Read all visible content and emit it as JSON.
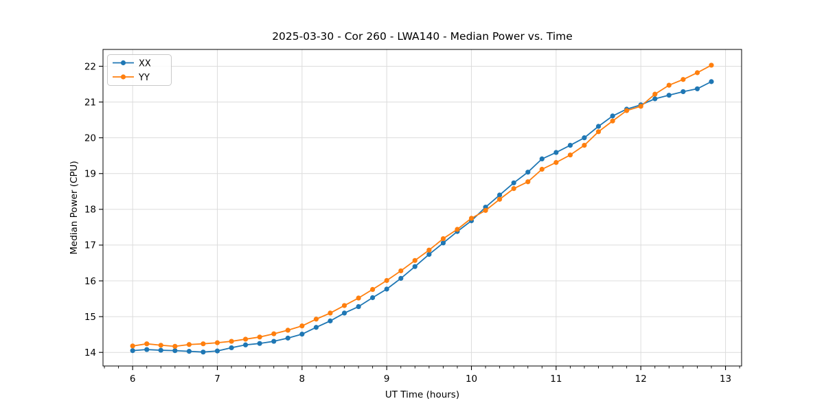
{
  "title": "2025-03-30 - Cor 260 - LWA140 - Median Power vs. Time",
  "colors": {
    "series_xx": "#1f77b4",
    "series_yy": "#ff7f0e",
    "grid": "#dcdcdc",
    "spine": "#000000",
    "legend_border": "#c8c8c8",
    "background": "#ffffff"
  },
  "legend": {
    "position": "upper-left",
    "entries": [
      {
        "label": "XX",
        "color": "#1f77b4"
      },
      {
        "label": "YY",
        "color": "#ff7f0e"
      }
    ]
  },
  "chart_data": {
    "type": "line",
    "title": "2025-03-30 - Cor 260 - LWA140 - Median Power vs. Time",
    "xlabel": "UT Time (hours)",
    "ylabel": "Median Power (CPU)",
    "xlim": [
      5.65,
      13.19
    ],
    "ylim": [
      13.62,
      22.47
    ],
    "xticks": [
      6,
      7,
      8,
      9,
      10,
      11,
      12,
      13
    ],
    "yticks": [
      14,
      15,
      16,
      17,
      18,
      19,
      20,
      21,
      22
    ],
    "x_minor_step": 0.16667,
    "grid": true,
    "legend_position": "upper-left",
    "marker": "circle",
    "x": [
      6.0,
      6.167,
      6.333,
      6.5,
      6.667,
      6.833,
      7.0,
      7.167,
      7.333,
      7.5,
      7.667,
      7.833,
      8.0,
      8.167,
      8.333,
      8.5,
      8.667,
      8.833,
      9.0,
      9.167,
      9.333,
      9.5,
      9.667,
      9.833,
      10.0,
      10.167,
      10.333,
      10.5,
      10.667,
      10.833,
      11.0,
      11.167,
      11.333,
      11.5,
      11.667,
      11.833,
      12.0,
      12.167,
      12.333,
      12.5,
      12.667,
      12.833
    ],
    "series": [
      {
        "name": "XX",
        "color": "#1f77b4",
        "values": [
          14.05,
          14.08,
          14.06,
          14.05,
          14.03,
          14.01,
          14.04,
          14.13,
          14.21,
          14.25,
          14.31,
          14.4,
          14.51,
          14.7,
          14.88,
          15.1,
          15.28,
          15.53,
          15.77,
          16.07,
          16.4,
          16.74,
          17.06,
          17.38,
          17.68,
          18.06,
          18.4,
          18.74,
          19.04,
          19.41,
          19.59,
          19.79,
          20.0,
          20.32,
          20.61,
          20.8,
          20.92,
          21.09,
          21.19,
          21.29,
          21.37,
          21.57
        ]
      },
      {
        "name": "YY",
        "color": "#ff7f0e",
        "values": [
          14.18,
          14.24,
          14.2,
          14.17,
          14.22,
          14.24,
          14.27,
          14.31,
          14.37,
          14.43,
          14.52,
          14.62,
          14.74,
          14.93,
          15.1,
          15.31,
          15.52,
          15.76,
          16.01,
          16.28,
          16.57,
          16.86,
          17.18,
          17.44,
          17.75,
          17.97,
          18.28,
          18.58,
          18.77,
          19.12,
          19.31,
          19.52,
          19.79,
          20.17,
          20.47,
          20.76,
          20.88,
          21.22,
          21.47,
          21.63,
          21.82,
          22.03
        ]
      }
    ]
  }
}
